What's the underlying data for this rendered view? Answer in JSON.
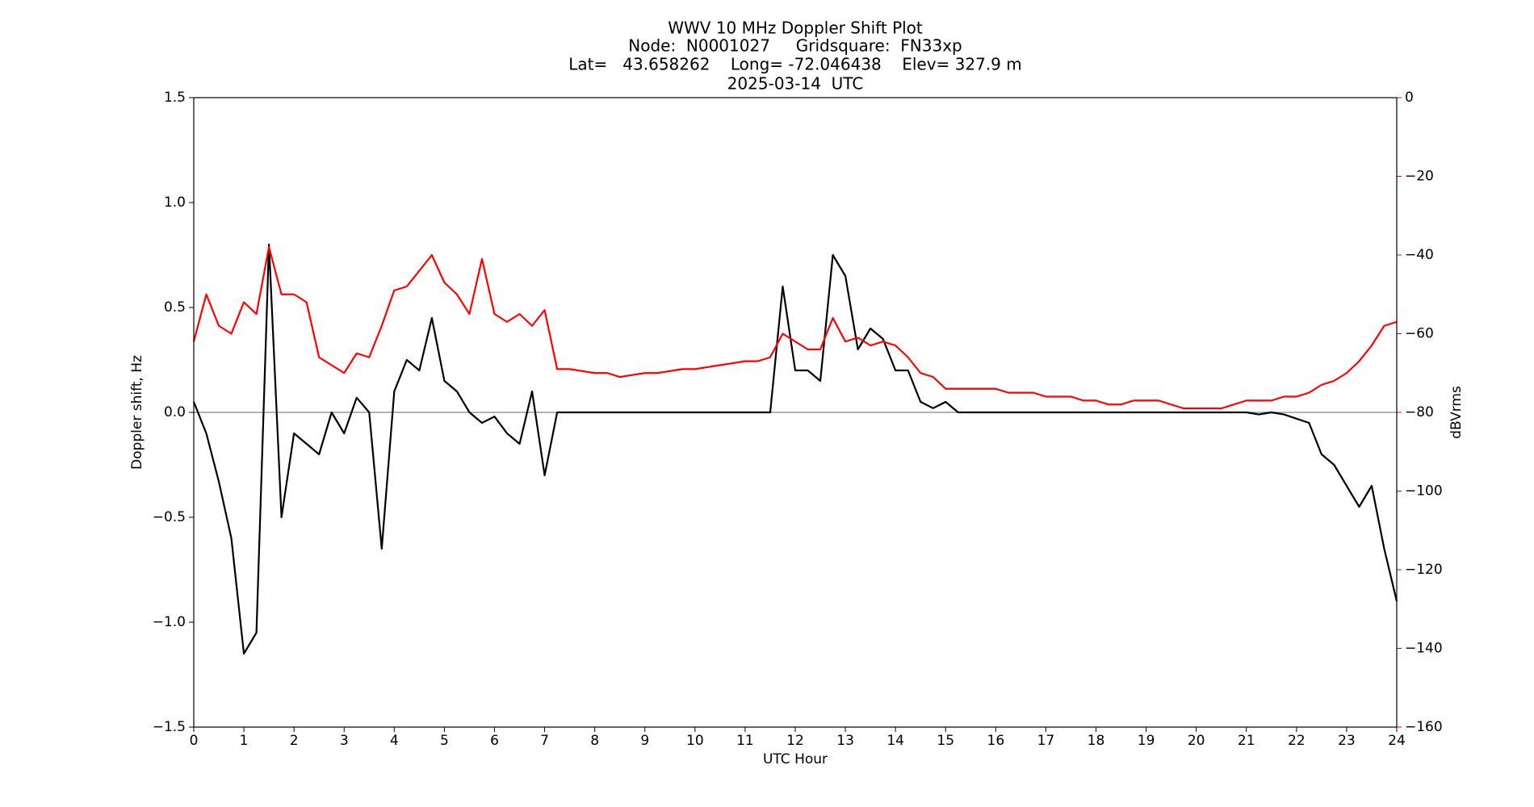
{
  "chart_data": {
    "type": "line",
    "title": [
      "WWV 10 MHz Doppler Shift Plot",
      "Node:  N0001027     Gridsquare:  FN33xp",
      "Lat=   43.658262    Long= -72.046438    Elev= 327.9 m",
      "2025-03-14  UTC"
    ],
    "x_label": "UTC Hour",
    "y_label": "Doppler shift, Hz",
    "y2_label": "dBVrms",
    "y2_color": "#ff0000",
    "x": [
      0,
      0.25,
      0.5,
      0.75,
      1,
      1.25,
      1.5,
      1.75,
      2,
      2.25,
      2.5,
      2.75,
      3,
      3.25,
      3.5,
      3.75,
      4,
      4.25,
      4.5,
      4.75,
      5,
      5.25,
      5.5,
      5.75,
      6,
      6.25,
      6.5,
      6.75,
      7,
      7.25,
      7.5,
      7.75,
      8,
      8.25,
      8.5,
      8.75,
      9,
      9.25,
      9.5,
      9.75,
      10,
      10.25,
      10.5,
      10.75,
      11,
      11.25,
      11.5,
      11.75,
      12,
      12.25,
      12.5,
      12.75,
      13,
      13.25,
      13.5,
      13.75,
      14,
      14.25,
      14.5,
      14.75,
      15,
      15.25,
      15.5,
      15.75,
      16,
      16.25,
      16.5,
      16.75,
      17,
      17.25,
      17.5,
      17.75,
      18,
      18.25,
      18.5,
      18.75,
      19,
      19.25,
      19.5,
      19.75,
      20,
      20.25,
      20.5,
      20.75,
      21,
      21.25,
      21.5,
      21.75,
      22,
      22.25,
      22.5,
      22.75,
      23,
      23.25,
      23.5,
      23.75,
      24
    ],
    "series": [
      {
        "name": "Doppler shift",
        "color": "#000000",
        "values": [
          0.05,
          -0.1,
          -0.33,
          -0.6,
          -1.15,
          -1.05,
          0.8,
          -0.5,
          -0.1,
          -0.15,
          -0.2,
          0.0,
          -0.1,
          0.07,
          0.0,
          -0.65,
          0.1,
          0.25,
          0.2,
          0.45,
          0.15,
          0.1,
          0.0,
          -0.05,
          -0.02,
          -0.1,
          -0.15,
          0.1,
          -0.3,
          0.0,
          0,
          0,
          0,
          0,
          0,
          0,
          0,
          0,
          0,
          0,
          0,
          0,
          0,
          0,
          0,
          0,
          0,
          0.6,
          0.2,
          0.2,
          0.15,
          0.75,
          0.65,
          0.3,
          0.4,
          0.35,
          0.2,
          0.2,
          0.05,
          0.02,
          0.05,
          0,
          0,
          0,
          0,
          0,
          0,
          0,
          0,
          0,
          0,
          0,
          0,
          0,
          0,
          0,
          0,
          0,
          0,
          0,
          0,
          0,
          0,
          0,
          0,
          -0.01,
          0,
          -0.01,
          -0.03,
          -0.05,
          -0.2,
          -0.25,
          -0.35,
          -0.45,
          -0.35,
          -0.65,
          -0.9
        ]
      },
      {
        "name": "dBVrms",
        "color": "#ff0000",
        "axis": "y2",
        "values": [
          -62,
          -50,
          -58,
          -60,
          -52,
          -55,
          -38,
          -50,
          -50,
          -52,
          -66,
          -68,
          -70,
          -65,
          -66,
          -58,
          -49,
          -48,
          -44,
          -40,
          -47,
          -50,
          -55,
          -41,
          -55,
          -57,
          -55,
          -58,
          -54,
          -69,
          -69,
          -69.5,
          -70,
          -70,
          -71,
          -70.5,
          -70,
          -70,
          -69.5,
          -69,
          -69,
          -68.5,
          -68,
          -67.5,
          -67,
          -67,
          -66,
          -60,
          -62,
          -64,
          -64,
          -56,
          -62,
          -61,
          -63,
          -62,
          -63,
          -66,
          -70,
          -71,
          -74,
          -74,
          -74,
          -74,
          -74,
          -75,
          -75,
          -75,
          -76,
          -76,
          -76,
          -77,
          -77,
          -78,
          -78,
          -77,
          -77,
          -77,
          -78,
          -79,
          -79,
          -79,
          -79,
          -78,
          -77,
          -77,
          -77,
          -76,
          -76,
          -75,
          -73,
          -72,
          -70,
          -67,
          -63,
          -58,
          -57
        ]
      }
    ],
    "reference_line": 0,
    "reference_color": "#999999",
    "xlim": [
      0,
      24
    ],
    "xticks": [
      0,
      1,
      2,
      3,
      4,
      5,
      6,
      7,
      8,
      9,
      10,
      11,
      12,
      13,
      14,
      15,
      16,
      17,
      18,
      19,
      20,
      21,
      22,
      23,
      24
    ],
    "ylim": [
      -1.5,
      1.5
    ],
    "yticks": [
      {
        "value": -1.5,
        "label": "−1.5"
      },
      {
        "value": -1.0,
        "label": "−1.0"
      },
      {
        "value": -0.5,
        "label": "−0.5"
      },
      {
        "value": 0,
        "label": "0.0"
      },
      {
        "value": 0.5,
        "label": "0.5"
      },
      {
        "value": 1.0,
        "label": "1.0"
      },
      {
        "value": 1.5,
        "label": "1.5"
      }
    ],
    "y2lim": [
      -160,
      0
    ],
    "y2ticks": [
      {
        "value": -160,
        "label": "−160"
      },
      {
        "value": -140,
        "label": "−140"
      },
      {
        "value": -120,
        "label": "−120"
      },
      {
        "value": -100,
        "label": "−100"
      },
      {
        "value": -80,
        "label": "−80"
      },
      {
        "value": -60,
        "label": "−60"
      },
      {
        "value": -40,
        "label": "−40"
      },
      {
        "value": -20,
        "label": "−20"
      },
      0
    ],
    "grid": false
  }
}
